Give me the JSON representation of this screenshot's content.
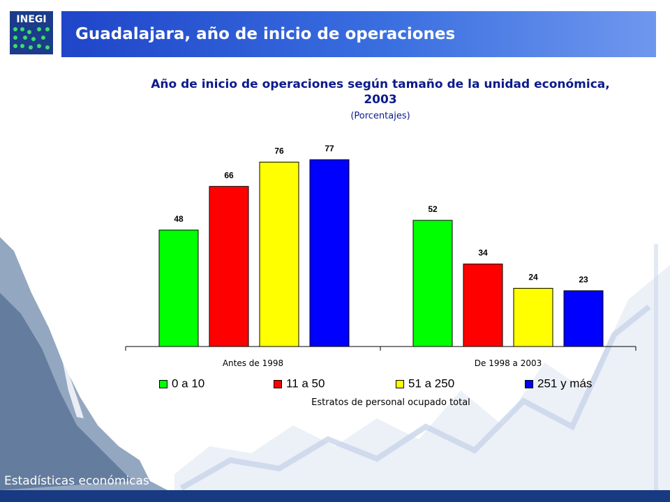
{
  "banner": {
    "logo_text": "INEGI",
    "title": "Guadalajara, año de inicio de operaciones"
  },
  "colors": {
    "banner_blue": "#1f45c9",
    "title_navy": "#0b1a8c",
    "footer_navy": "#173a82"
  },
  "chart_data": {
    "type": "bar",
    "title": "Año de inicio de operaciones según tamaño de la unidad económica, 2003",
    "subtitle": "(Porcentajes)",
    "xlabel": "Estratos de personal ocupado total",
    "ylabel": "",
    "categories": [
      "Antes de 1998",
      "De 1998 a 2003"
    ],
    "series": [
      {
        "name": "0 a 10",
        "color": "#00ff00",
        "values": [
          48,
          52
        ]
      },
      {
        "name": "11 a 50",
        "color": "#ff0000",
        "values": [
          66,
          34
        ]
      },
      {
        "name": "51 a 250",
        "color": "#ffff00",
        "values": [
          76,
          24
        ]
      },
      {
        "name": "251 y más",
        "color": "#0000ff",
        "values": [
          77,
          23
        ]
      }
    ],
    "ylim": [
      0,
      100
    ],
    "grid": false,
    "legend_position": "bottom",
    "data_labels": true
  },
  "footer": {
    "text": "Estadísticas económicas"
  }
}
